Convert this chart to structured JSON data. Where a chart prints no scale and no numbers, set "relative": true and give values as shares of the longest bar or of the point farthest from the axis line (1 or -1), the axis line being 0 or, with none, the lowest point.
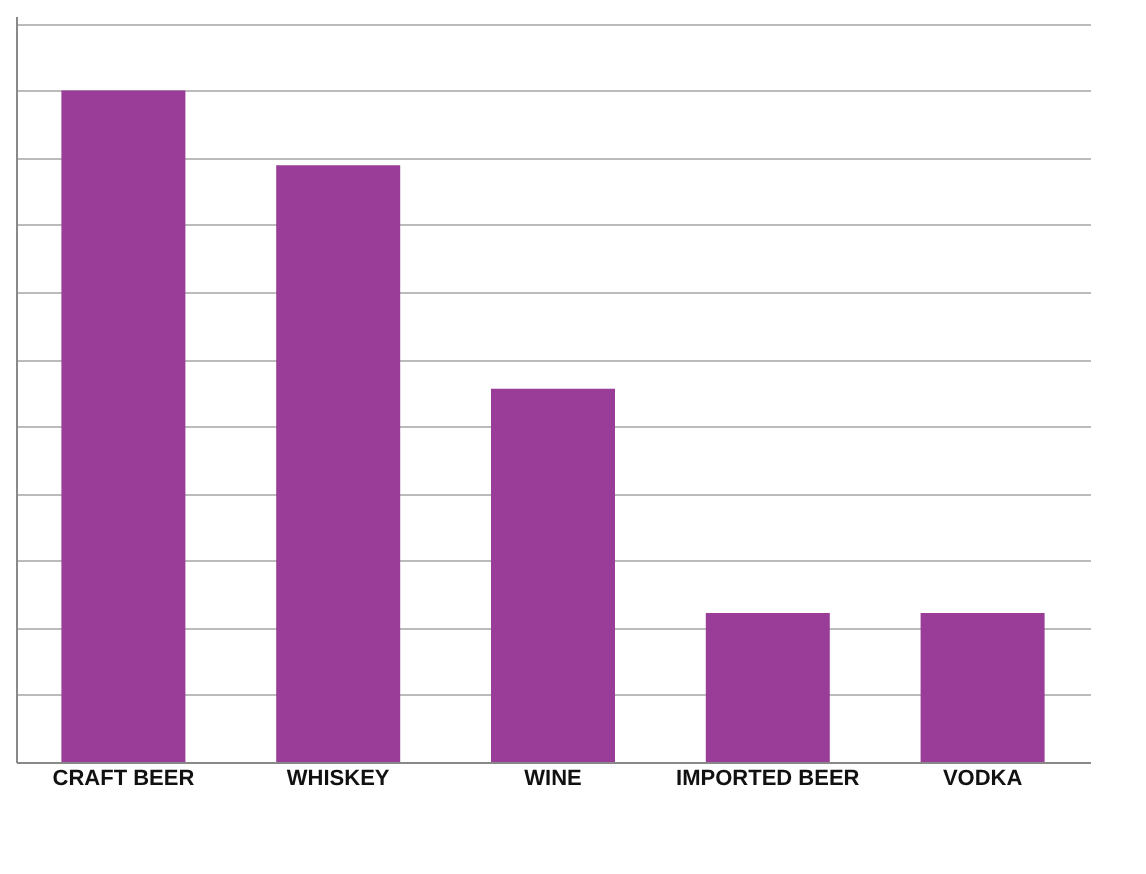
{
  "chart_data": {
    "type": "bar",
    "relative": true,
    "categories": [
      "CRAFT BEER",
      "WHISKEY",
      "WINE",
      "IMPORTED BEER",
      "VODKA"
    ],
    "values": [
      1,
      0.889,
      0.556,
      0.222,
      0.222
    ],
    "color": "#993d98",
    "grid": "y"
  }
}
